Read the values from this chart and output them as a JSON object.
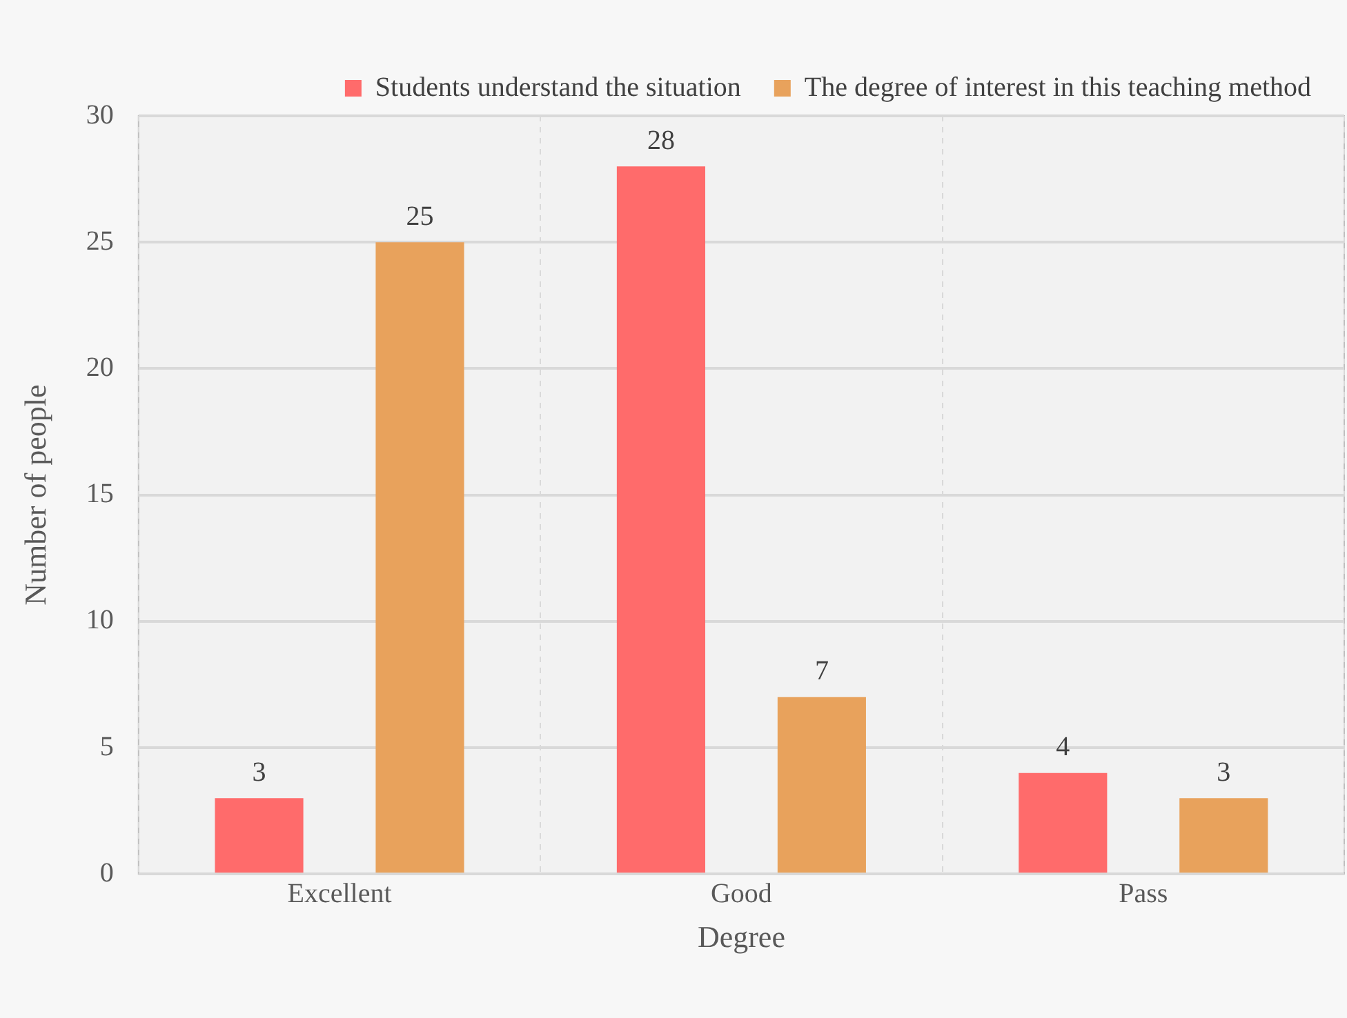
{
  "chart_data": {
    "type": "bar",
    "xlabel": "Degree",
    "ylabel": "Number of people",
    "categories": [
      "Excellent",
      "Good",
      "Pass"
    ],
    "series": [
      {
        "name": "Students understand the situation",
        "color": "#ff6b6b",
        "values": [
          3,
          28,
          4
        ]
      },
      {
        "name": "The degree of interest in this teaching method",
        "color": "#e8a25c",
        "values": [
          25,
          7,
          3
        ]
      }
    ],
    "ylim": [
      0,
      30
    ],
    "yticks": [
      0,
      5,
      10,
      15,
      20,
      25,
      30
    ],
    "grid": true,
    "legend": "top",
    "data_labels": true
  }
}
